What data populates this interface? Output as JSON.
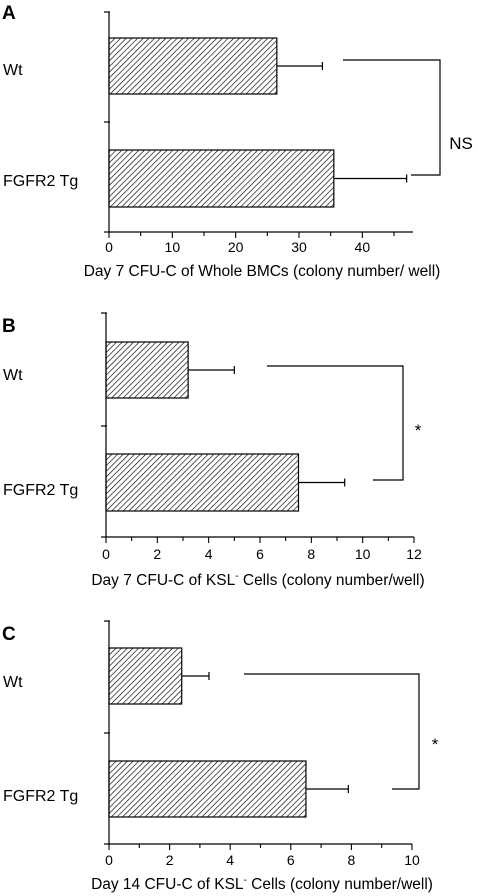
{
  "chart_data": [
    {
      "panel": "A",
      "type": "bar",
      "orientation": "horizontal",
      "categories": [
        "Wt",
        "FGFR2 Tg"
      ],
      "values": [
        26.5,
        35.5
      ],
      "errors": [
        7.2,
        11.5
      ],
      "xlabel": "Day 7 CFU-C of Whole BMCs (colony number/ well)",
      "xlim": [
        0,
        48
      ],
      "xticks": [
        0,
        10,
        20,
        30,
        40
      ],
      "significance": "NS"
    },
    {
      "panel": "B",
      "type": "bar",
      "orientation": "horizontal",
      "categories": [
        "Wt",
        "FGFR2 Tg"
      ],
      "values": [
        3.2,
        7.5
      ],
      "errors": [
        1.8,
        1.8
      ],
      "xlabel_pre": "Day 7 CFU-C of KSL",
      "xlabel_sup": "-",
      "xlabel_post": " Cells (colony number/well)",
      "xlim": [
        0,
        12
      ],
      "xticks": [
        0,
        2,
        4,
        6,
        8,
        10,
        12
      ],
      "significance": "*"
    },
    {
      "panel": "C",
      "type": "bar",
      "orientation": "horizontal",
      "categories": [
        "Wt",
        "FGFR2 Tg"
      ],
      "values": [
        2.4,
        6.5
      ],
      "errors": [
        0.9,
        1.4
      ],
      "xlabel_pre": "Day 14 CFU-C of KSL",
      "xlabel_sup": "-",
      "xlabel_post": " Cells (colony number/well)",
      "xlim": [
        0,
        10
      ],
      "xticks": [
        0,
        2,
        4,
        6,
        8,
        10
      ],
      "significance": "*"
    }
  ]
}
